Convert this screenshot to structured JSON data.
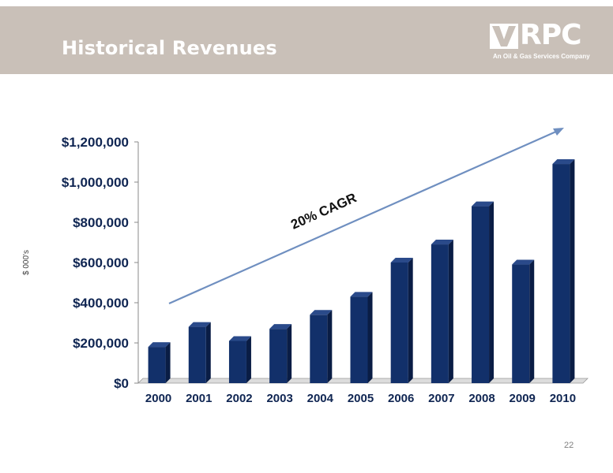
{
  "slide": {
    "title": "Historical Revenues",
    "page_number": "22",
    "header_color": "#c9c0b8"
  },
  "logo": {
    "word": "RPC",
    "tagline": "An Oil & Gas Services Company"
  },
  "chart_data": {
    "type": "bar",
    "categories": [
      "2000",
      "2001",
      "2002",
      "2003",
      "2004",
      "2005",
      "2006",
      "2007",
      "2008",
      "2009",
      "2010"
    ],
    "values": [
      180000,
      280000,
      210000,
      270000,
      340000,
      430000,
      600000,
      690000,
      880000,
      590000,
      1090000
    ],
    "ylabel": "$ 000's",
    "ylim": [
      0,
      1200000
    ],
    "yticks": [
      0,
      200000,
      400000,
      600000,
      800000,
      1000000,
      1200000
    ],
    "ytick_labels": [
      "$0",
      "$200,000",
      "$400,000",
      "$600,000",
      "$800,000",
      "$1,000,000",
      "$1,200,000"
    ],
    "annotation": "20% CAGR",
    "bar_color": "#12306a",
    "grid": false
  }
}
